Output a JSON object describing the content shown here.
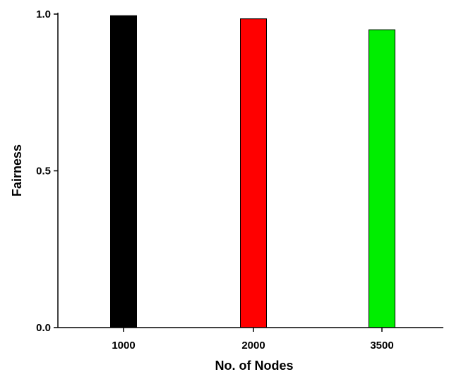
{
  "chart_data": {
    "type": "bar",
    "categories": [
      "1000",
      "2000",
      "3500"
    ],
    "values": [
      0.995,
      0.985,
      0.95
    ],
    "colors": [
      "#000000",
      "#ff0000",
      "#00ee00"
    ],
    "xlabel": "No. of Nodes",
    "ylabel": "Fairness",
    "ylim": [
      0.0,
      1.0
    ],
    "yticks": [
      0.0,
      0.5,
      1.0
    ],
    "ytick_labels": [
      "0.0",
      "0.5",
      "1.0"
    ],
    "grid": false,
    "legend": "none"
  }
}
